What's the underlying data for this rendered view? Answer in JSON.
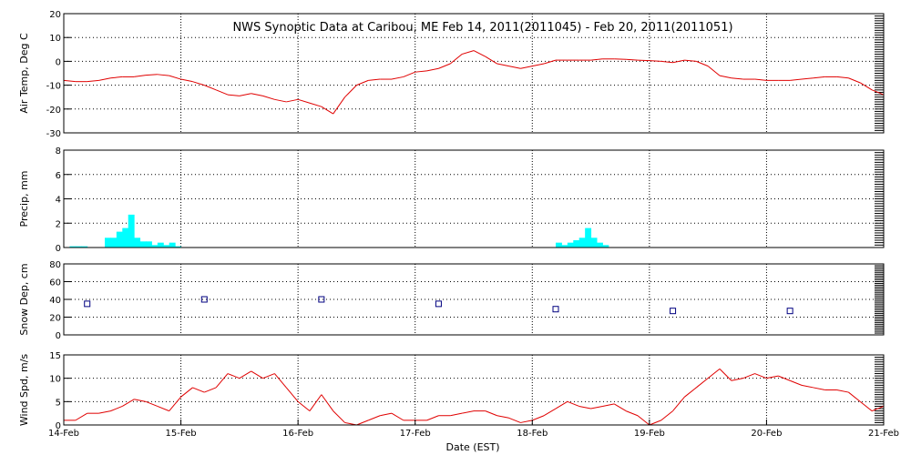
{
  "title": "NWS Synoptic Data at Caribou, ME   Feb 14, 2011(2011045) - Feb 20, 2011(2011051)",
  "xlabel": "Date (EST)",
  "colors": {
    "line": "#e00000",
    "precip_bar": "#00ffff",
    "snow_marker": "#000080",
    "axis": "#000000",
    "background": "#ffffff"
  },
  "chart_data": [
    {
      "id": "air_temp",
      "type": "line",
      "ylabel": "Air Temp, Deg C",
      "ylim": [
        -30,
        20
      ],
      "yticks": [
        -30,
        -20,
        -10,
        0,
        10,
        20
      ],
      "xlim": [
        0,
        7
      ],
      "grid": true,
      "series": [
        {
          "x": [
            0.0,
            0.1,
            0.2,
            0.3,
            0.4,
            0.5,
            0.6,
            0.7,
            0.8,
            0.9,
            1.0,
            1.1,
            1.2,
            1.3,
            1.4,
            1.5,
            1.6,
            1.7,
            1.8,
            1.9,
            2.0,
            2.1,
            2.2,
            2.3,
            2.4,
            2.5,
            2.6,
            2.7,
            2.8,
            2.9,
            3.0,
            3.1,
            3.2,
            3.3,
            3.4,
            3.5,
            3.6,
            3.7,
            3.8,
            3.9,
            4.0,
            4.1,
            4.2,
            4.3,
            4.4,
            4.5,
            4.6,
            4.7,
            4.8,
            4.9,
            5.0,
            5.1,
            5.2,
            5.3,
            5.4,
            5.5,
            5.6,
            5.7,
            5.8,
            5.9,
            6.0,
            6.1,
            6.2,
            6.3,
            6.4,
            6.5,
            6.6,
            6.7,
            6.8,
            6.9,
            7.0
          ],
          "y": [
            -8,
            -8.5,
            -8.5,
            -8,
            -7,
            -6.5,
            -6.5,
            -5.8,
            -5.5,
            -6,
            -7.5,
            -8.5,
            -10,
            -12,
            -14,
            -14.5,
            -13.5,
            -14.5,
            -16,
            -17,
            -16,
            -17.5,
            -19,
            -22,
            -15,
            -10,
            -8,
            -7.5,
            -7.5,
            -6.5,
            -4.5,
            -4,
            -3,
            -1,
            3,
            4.5,
            2,
            -1,
            -2,
            -3,
            -2,
            -1,
            0.5,
            0.5,
            0.5,
            0.5,
            1,
            1,
            0.8,
            0.5,
            0.3,
            0,
            -0.5,
            0.5,
            0,
            -2,
            -6,
            -7,
            -7.5,
            -7.5,
            -8,
            -8,
            -8,
            -7.5,
            -7,
            -6.5,
            -6.5,
            -7,
            -9,
            -12,
            -14
          ]
        }
      ]
    },
    {
      "id": "precip",
      "type": "bar",
      "ylabel": "Precip, mm",
      "ylim": [
        0,
        8
      ],
      "yticks": [
        0,
        2,
        4,
        6,
        8
      ],
      "xlim": [
        0,
        7
      ],
      "grid": true,
      "series": [
        {
          "x": [
            0.05,
            0.1,
            0.15,
            0.35,
            0.4,
            0.45,
            0.5,
            0.55,
            0.6,
            0.65,
            0.7,
            0.75,
            0.8,
            0.85,
            0.9,
            0.95,
            4.2,
            4.25,
            4.3,
            4.35,
            4.4,
            4.45,
            4.5,
            4.55,
            4.6
          ],
          "y": [
            0.1,
            0.1,
            0.1,
            0.8,
            0.8,
            1.3,
            1.6,
            2.7,
            0.8,
            0.5,
            0.5,
            0.2,
            0.4,
            0.2,
            0.4,
            0.1,
            0.4,
            0.2,
            0.4,
            0.6,
            0.8,
            1.6,
            0.8,
            0.4,
            0.2
          ]
        }
      ]
    },
    {
      "id": "snow_depth",
      "type": "scatter",
      "ylabel": "Snow Dep, cm",
      "ylim": [
        0,
        80
      ],
      "yticks": [
        0,
        20,
        40,
        60,
        80
      ],
      "xlim": [
        0,
        7
      ],
      "grid": true,
      "series": [
        {
          "x": [
            0.2,
            1.2,
            2.2,
            3.2,
            4.2,
            5.2,
            6.2
          ],
          "y": [
            35,
            40,
            40,
            35,
            29,
            27,
            27
          ]
        }
      ]
    },
    {
      "id": "wind_speed",
      "type": "line",
      "ylabel": "Wind Spd, m/s",
      "ylim": [
        0,
        15
      ],
      "yticks": [
        0,
        5,
        10,
        15
      ],
      "xlim": [
        0,
        7
      ],
      "grid": true,
      "categories": [
        "14-Feb",
        "15-Feb",
        "16-Feb",
        "17-Feb",
        "18-Feb",
        "19-Feb",
        "20-Feb",
        "21-Feb"
      ],
      "series": [
        {
          "x": [
            0.0,
            0.1,
            0.2,
            0.3,
            0.4,
            0.5,
            0.6,
            0.7,
            0.8,
            0.9,
            1.0,
            1.1,
            1.2,
            1.3,
            1.4,
            1.5,
            1.6,
            1.7,
            1.8,
            1.9,
            2.0,
            2.1,
            2.2,
            2.3,
            2.4,
            2.5,
            2.6,
            2.7,
            2.8,
            2.9,
            3.0,
            3.1,
            3.2,
            3.3,
            3.4,
            3.5,
            3.6,
            3.7,
            3.8,
            3.9,
            4.0,
            4.1,
            4.2,
            4.3,
            4.4,
            4.5,
            4.6,
            4.7,
            4.8,
            4.9,
            5.0,
            5.1,
            5.2,
            5.3,
            5.4,
            5.5,
            5.6,
            5.7,
            5.8,
            5.9,
            6.0,
            6.1,
            6.2,
            6.3,
            6.4,
            6.5,
            6.6,
            6.7,
            6.8,
            6.9,
            7.0
          ],
          "y": [
            1,
            1,
            2.5,
            2.5,
            3,
            4,
            5.5,
            5,
            4,
            3,
            6,
            8,
            7,
            8,
            11,
            10,
            11.5,
            10,
            11,
            8,
            5,
            3,
            6.5,
            3,
            0.5,
            0,
            1,
            2,
            2.5,
            1,
            1,
            1,
            2,
            2,
            2.5,
            3,
            3,
            2,
            1.5,
            0.5,
            1,
            2,
            3.5,
            5,
            4,
            3.5,
            4,
            4.5,
            3,
            2,
            0,
            1,
            3,
            6,
            8,
            10,
            12,
            9.5,
            10,
            11,
            10,
            10.5,
            9.5,
            8.5,
            8,
            7.5,
            7.5,
            7,
            5,
            3,
            4
          ]
        }
      ]
    }
  ]
}
